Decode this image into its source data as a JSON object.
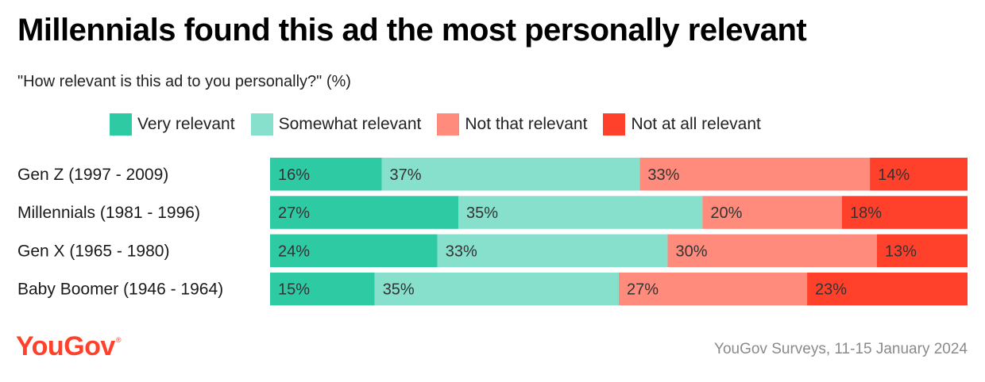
{
  "title": "Millennials found this ad the most personally relevant",
  "subtitle": "\"How relevant is this ad to you personally?\" (%)",
  "colors": {
    "very": "#2ecaa4",
    "somewhat": "#86e0cc",
    "not_that": "#ff8b7d",
    "not_at_all": "#ff412c",
    "logo": "#ff412c"
  },
  "logo": {
    "text": "YouGov",
    "mark": "®"
  },
  "source": "YouGov Surveys, 11-15 January 2024",
  "chart_data": {
    "type": "bar",
    "orientation": "horizontal-stacked-100",
    "title": "Millennials found this ad the most personally relevant",
    "subtitle": "\"How relevant is this ad to you personally?\" (%)",
    "categories": [
      "Gen Z (1997 - 2009)",
      "Millennials (1981 - 1996)",
      "Gen X (1965 - 1980)",
      "Baby Boomer (1946 - 1964)"
    ],
    "series": [
      {
        "name": "Very relevant",
        "color": "#2ecaa4",
        "values": [
          16,
          27,
          24,
          15
        ]
      },
      {
        "name": "Somewhat relevant",
        "color": "#86e0cc",
        "values": [
          37,
          35,
          33,
          35
        ]
      },
      {
        "name": "Not that relevant",
        "color": "#ff8b7d",
        "values": [
          33,
          20,
          30,
          27
        ]
      },
      {
        "name": "Not at all relevant",
        "color": "#ff412c",
        "values": [
          14,
          18,
          13,
          23
        ]
      }
    ],
    "value_suffix": "%",
    "legend_position": "top",
    "xlim": [
      0,
      100
    ]
  }
}
